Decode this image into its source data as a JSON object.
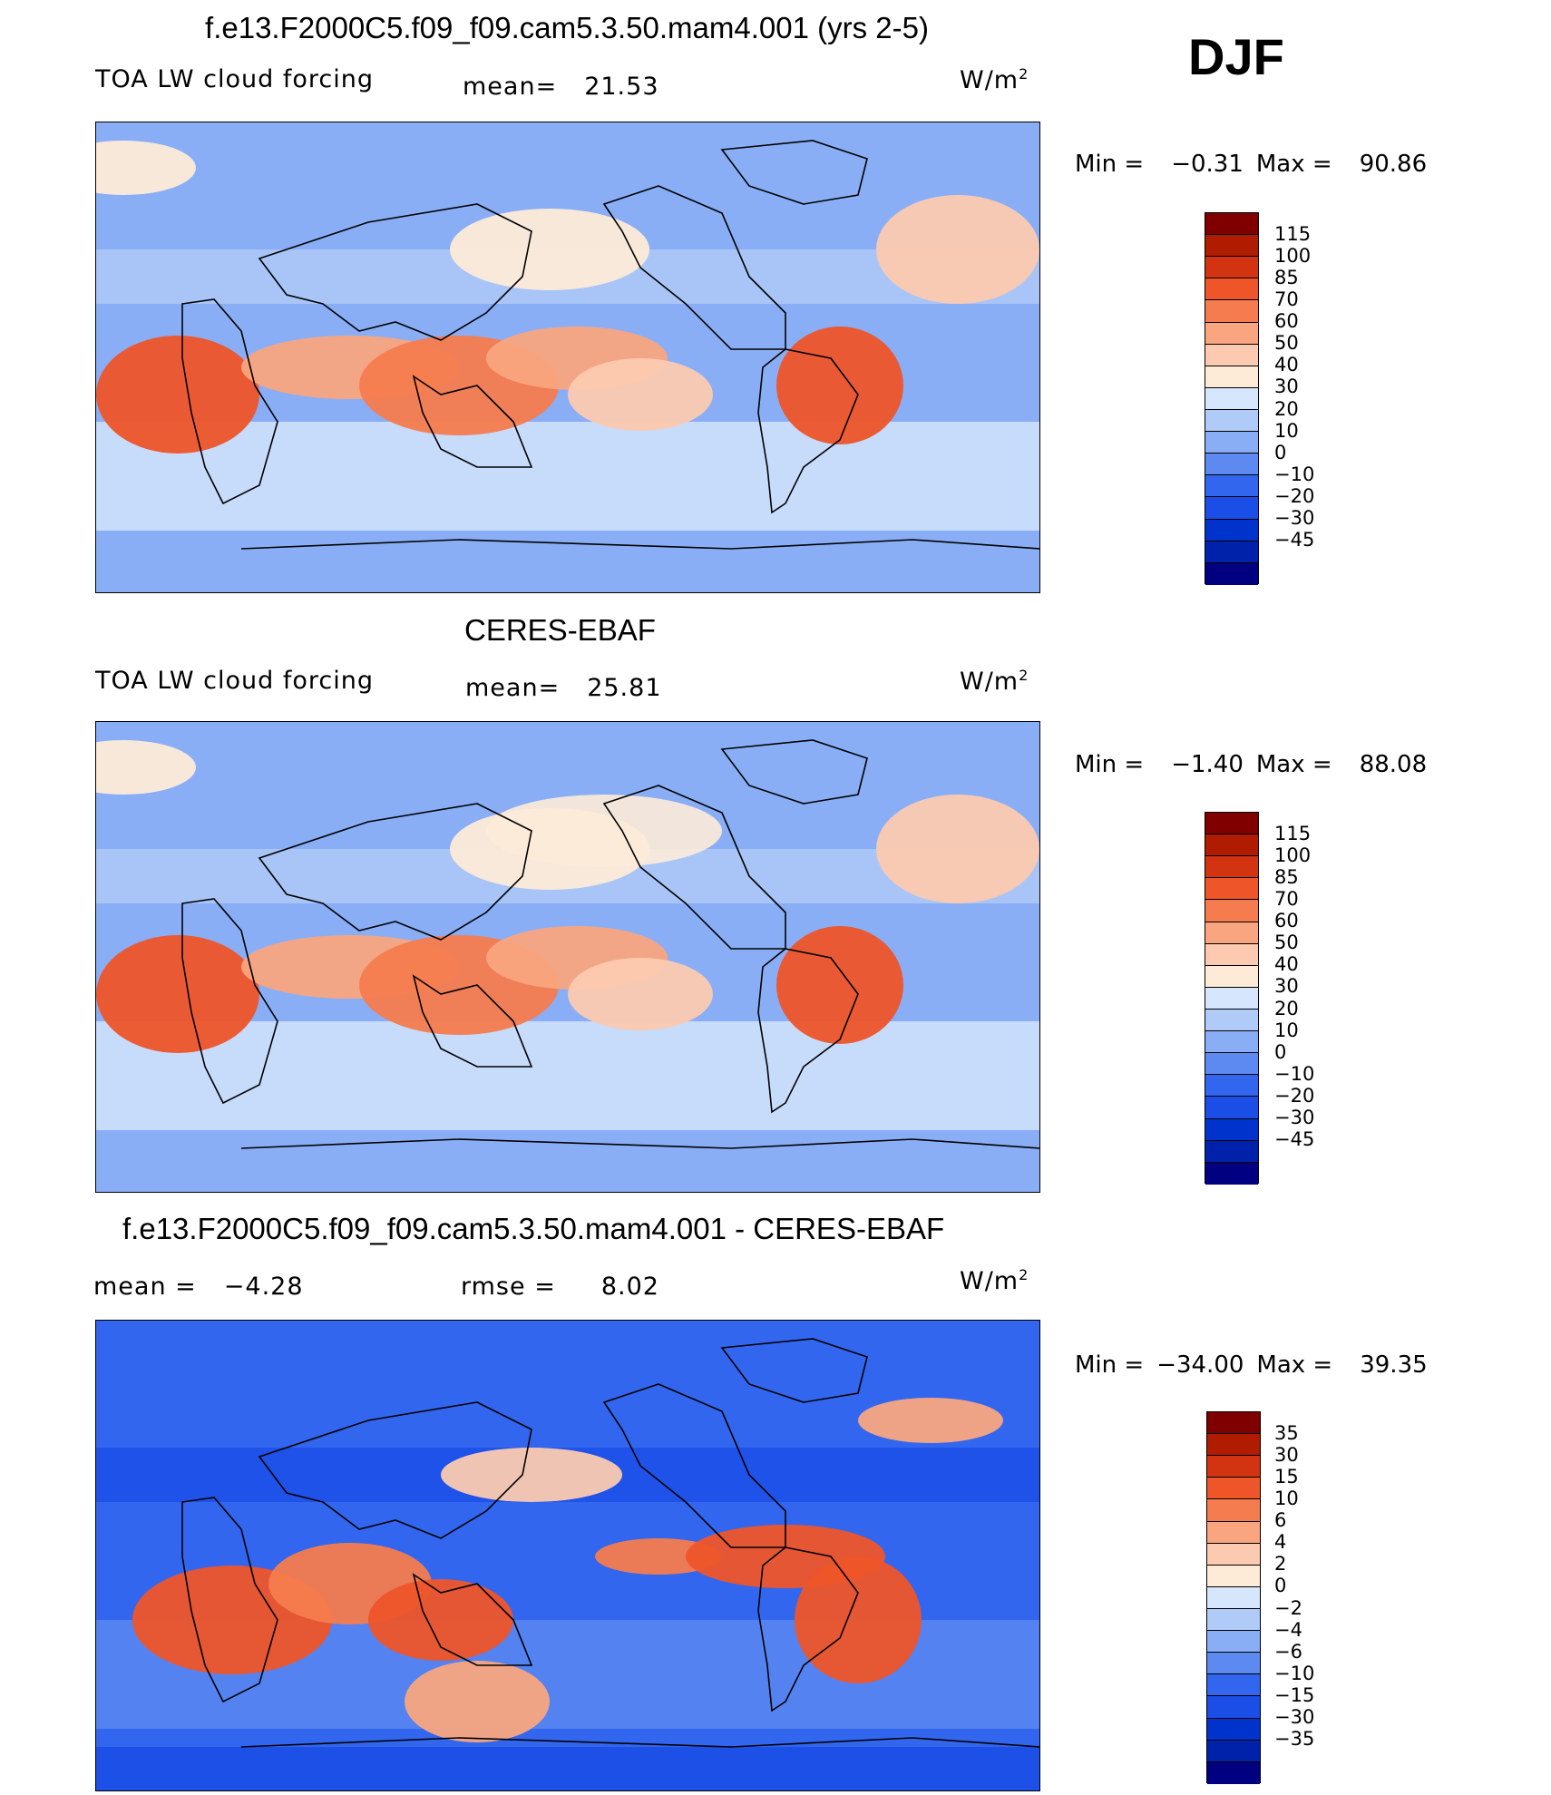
{
  "season": "DJF",
  "units": "W/m",
  "units_sup": "2",
  "colors": {
    "abs_scale": [
      "#000080",
      "#0022aa",
      "#0033cc",
      "#1a4ee6",
      "#3366ee",
      "#5c8af0",
      "#8aaef5",
      "#b0cbf8",
      "#d6e6fc",
      "#fdebd8",
      "#fccab0",
      "#f9a57f",
      "#f57c4e",
      "#ee5529",
      "#d23412",
      "#b01c00",
      "#800000"
    ],
    "diff_scale": [
      "#000080",
      "#0022aa",
      "#0033cc",
      "#1a4ee6",
      "#3366ee",
      "#5c8af0",
      "#8aaef5",
      "#b0cbf8",
      "#d6e6fc",
      "#fdebd8",
      "#fccab0",
      "#f9a57f",
      "#f57c4e",
      "#ee5529",
      "#d23412",
      "#b01c00",
      "#800000"
    ]
  },
  "panels": [
    {
      "title": "f.e13.F2000C5.f09_f09.cam5.3.50.mam4.001 (yrs 2-5)",
      "left_label": "TOA LW cloud forcing",
      "center_label": "mean=",
      "center_value": "21.53",
      "min_label": "Min =",
      "min_value": "−0.31",
      "max_label": "Max =",
      "max_value": "90.86",
      "ticks": [
        "115",
        "100",
        "85",
        "70",
        "60",
        "50",
        "40",
        "30",
        "20",
        "10",
        "0",
        "−10",
        "−20",
        "−30",
        "−45"
      ],
      "scale": "abs_scale"
    },
    {
      "title": "CERES-EBAF",
      "left_label": "TOA LW cloud forcing",
      "center_label": "mean=",
      "center_value": "25.81",
      "min_label": "Min =",
      "min_value": "−1.40",
      "max_label": "Max =",
      "max_value": "88.08",
      "ticks": [
        "115",
        "100",
        "85",
        "70",
        "60",
        "50",
        "40",
        "30",
        "20",
        "10",
        "0",
        "−10",
        "−20",
        "−30",
        "−45"
      ],
      "scale": "abs_scale"
    },
    {
      "title": "f.e13.F2000C5.f09_f09.cam5.3.50.mam4.001 - CERES-EBAF",
      "left_label": "mean =",
      "left_value": "−4.28",
      "center_label": "rmse =",
      "center_value": "8.02",
      "min_label": "Min =",
      "min_value": "−34.00",
      "max_label": "Max =",
      "max_value": "39.35",
      "ticks": [
        "35",
        "30",
        "15",
        "10",
        "6",
        "4",
        "2",
        "0",
        "−2",
        "−4",
        "−6",
        "−10",
        "−15",
        "−30",
        "−35"
      ],
      "scale": "diff_scale"
    }
  ]
}
